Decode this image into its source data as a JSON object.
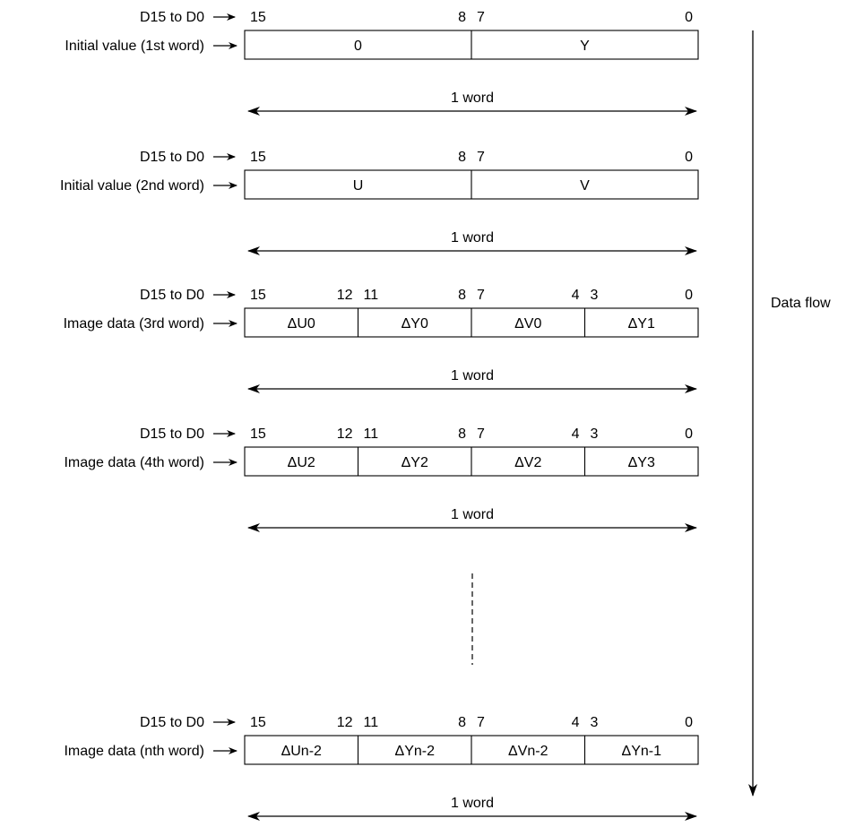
{
  "bit_header_label": "D15 to D0",
  "span_label": "1 word",
  "data_flow_label": "Data flow",
  "colors": {
    "line": "#000000",
    "background": "#ffffff"
  },
  "words": [
    {
      "label": "Initial value (1st word)",
      "bit_numbers": [
        "15",
        "8",
        "7",
        "0"
      ],
      "fields": [
        "0",
        "Y"
      ]
    },
    {
      "label": "Initial value (2nd word)",
      "bit_numbers": [
        "15",
        "8",
        "7",
        "0"
      ],
      "fields": [
        "U",
        "V"
      ]
    },
    {
      "label": "Image data (3rd word)",
      "bit_numbers": [
        "15",
        "12",
        "11",
        "8",
        "7",
        "4",
        "3",
        "0"
      ],
      "fields": [
        "ΔU0",
        "ΔY0",
        "ΔV0",
        "ΔY1"
      ]
    },
    {
      "label": "Image data (4th word)",
      "bit_numbers": [
        "15",
        "12",
        "11",
        "8",
        "7",
        "4",
        "3",
        "0"
      ],
      "fields": [
        "ΔU2",
        "ΔY2",
        "ΔV2",
        "ΔY3"
      ]
    },
    {
      "label": "Image data (nth word)",
      "bit_numbers": [
        "15",
        "12",
        "11",
        "8",
        "7",
        "4",
        "3",
        "0"
      ],
      "fields": [
        "ΔUn-2",
        "ΔYn-2",
        "ΔVn-2",
        "ΔYn-1"
      ]
    }
  ]
}
